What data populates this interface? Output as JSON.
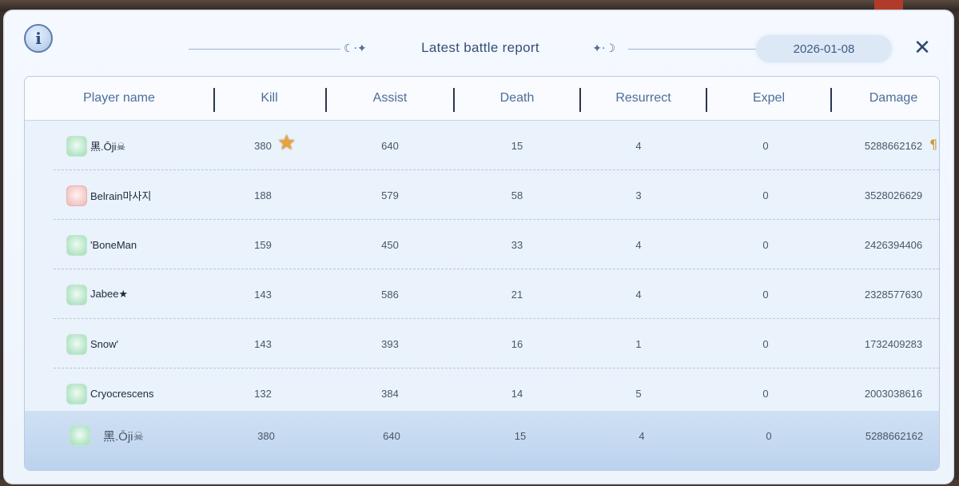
{
  "header": {
    "title": "Latest battle report",
    "date": "2026-01-08",
    "info_icon": "info-icon",
    "close_icon": "close-icon"
  },
  "columns": [
    "Player name",
    "Kill",
    "Assist",
    "Death",
    "Resurrect",
    "Expel",
    "Damage"
  ],
  "rows": [
    {
      "name": "黑.Ōji☠",
      "kill": "380",
      "assist": "640",
      "death": "15",
      "resurrect": "4",
      "expel": "0",
      "damage": "5288662162"
    },
    {
      "name": "Belrain마사지",
      "kill": "188",
      "assist": "579",
      "death": "58",
      "resurrect": "3",
      "expel": "0",
      "damage": "3528026629"
    },
    {
      "name": "'BoneMan",
      "kill": "159",
      "assist": "450",
      "death": "33",
      "resurrect": "4",
      "expel": "0",
      "damage": "2426394406"
    },
    {
      "name": "Jabee★",
      "kill": "143",
      "assist": "586",
      "death": "21",
      "resurrect": "4",
      "expel": "0",
      "damage": "2328577630"
    },
    {
      "name": "Snow'",
      "kill": "143",
      "assist": "393",
      "death": "16",
      "resurrect": "1",
      "expel": "0",
      "damage": "1732409283"
    },
    {
      "name": "Cryocrescens",
      "kill": "132",
      "assist": "384",
      "death": "14",
      "resurrect": "5",
      "expel": "0",
      "damage": "2003038616"
    }
  ],
  "self_row": {
    "name": "黑.Ōji☠",
    "kill": "380",
    "assist": "640",
    "death": "15",
    "resurrect": "4",
    "expel": "0",
    "damage": "5288662162"
  },
  "glyphs": {
    "info": "i",
    "close": "✕",
    "star": "★",
    "moon_left": "☾·✦",
    "moon_right": "✦·☽",
    "trophy": "¶"
  }
}
